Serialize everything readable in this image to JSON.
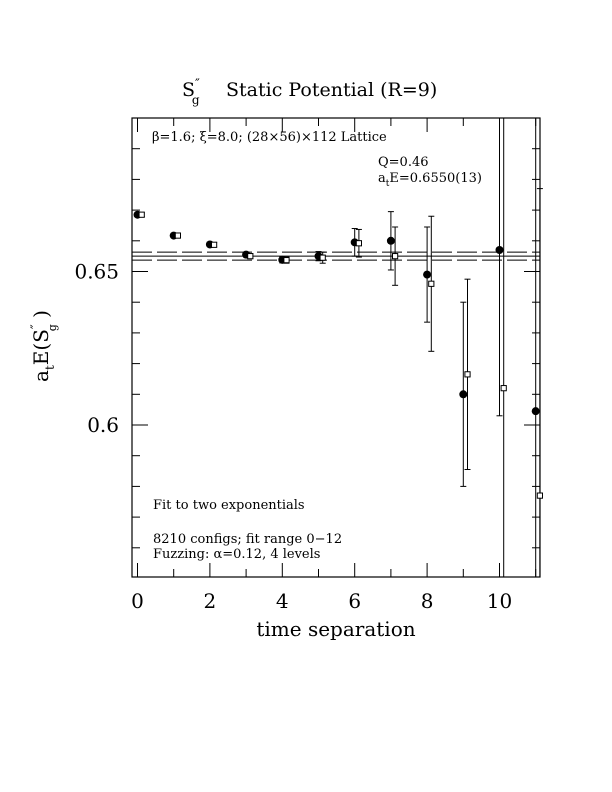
{
  "chart_data": {
    "type": "scatter",
    "title": "S″g  Static Potential (R=9)",
    "title_parts": {
      "symbol": "S",
      "prime": "″",
      "sub": "g",
      "rest": "Static Potential (R=9)"
    },
    "lattice_text": "β=1.6; ξ=8.0; (28×56)×112 Lattice",
    "fit_q": "Q=0.46",
    "fit_energy": {
      "prefix": "a",
      "sub": "t",
      "rest": "E=0.6550(13)"
    },
    "xlabel": "time separation",
    "ylabel": {
      "a": "a",
      "t": "t",
      "E": "E(S",
      "prime": "″",
      "g": "g",
      "close": " )"
    },
    "note_fit": "Fit to two exponentials",
    "note_configs": "8210 configs; fit range 0−12",
    "note_fuzz": "Fuzzing: α=0.12, 4 levels",
    "xlim": [
      -0.1,
      11.1
    ],
    "ylim": [
      0.55,
      0.7
    ],
    "xticks": [
      0,
      2,
      4,
      6,
      8,
      10
    ],
    "xtick_labels": [
      "0",
      "2",
      "4",
      "6",
      "8",
      "10"
    ],
    "yticks": [
      0.6,
      0.65
    ],
    "ytick_labels": [
      "0.6",
      "0.65"
    ],
    "fit_value": 0.655,
    "fit_error": 0.0013,
    "series": [
      {
        "marker": "filled-circle",
        "points": [
          {
            "x": 0,
            "y": 0.6685,
            "err": 0.0006
          },
          {
            "x": 1,
            "y": 0.6617,
            "err": 0.0005
          },
          {
            "x": 2,
            "y": 0.6588,
            "err": 0.0007
          },
          {
            "x": 3,
            "y": 0.6555,
            "err": 0.0008
          },
          {
            "x": 4,
            "y": 0.6538,
            "err": 0.001
          },
          {
            "x": 5,
            "y": 0.655,
            "err": 0.0015
          },
          {
            "x": 6,
            "y": 0.6595,
            "err": 0.0045
          },
          {
            "x": 7,
            "y": 0.66,
            "err": 0.0095
          },
          {
            "x": 8,
            "y": 0.649,
            "err": 0.0155
          },
          {
            "x": 9,
            "y": 0.61,
            "err": 0.03
          },
          {
            "x": 10,
            "y": 0.657,
            "err": 0.054
          },
          {
            "x": 11,
            "y": 0.6045,
            "err": 0.12
          }
        ]
      },
      {
        "marker": "open-square",
        "points": [
          {
            "x": 0,
            "y": 0.6685,
            "err": 0.0006
          },
          {
            "x": 1,
            "y": 0.6617,
            "err": 0.0005
          },
          {
            "x": 2,
            "y": 0.6587,
            "err": 0.0007
          },
          {
            "x": 3,
            "y": 0.655,
            "err": 0.0008
          },
          {
            "x": 4,
            "y": 0.6537,
            "err": 0.001
          },
          {
            "x": 5,
            "y": 0.6545,
            "err": 0.0018
          },
          {
            "x": 6,
            "y": 0.6592,
            "err": 0.0045
          },
          {
            "x": 7,
            "y": 0.655,
            "err": 0.0095
          },
          {
            "x": 8,
            "y": 0.646,
            "err": 0.022
          },
          {
            "x": 9,
            "y": 0.6165,
            "err": 0.031
          },
          {
            "x": 10,
            "y": 0.612,
            "err": 0.1
          },
          {
            "x": 11,
            "y": 0.577,
            "err": 0.1
          }
        ]
      }
    ],
    "grid": false,
    "legend": "none"
  }
}
